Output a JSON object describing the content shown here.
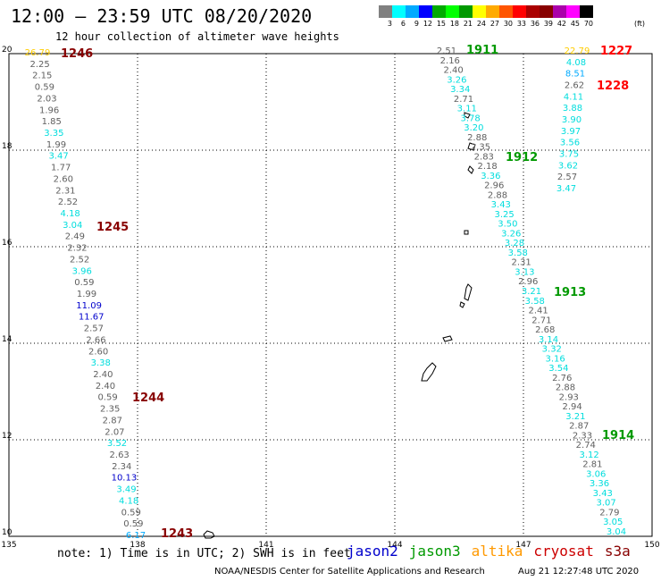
{
  "header": {
    "title": "12:00 – 23:59 UTC 08/20/2020",
    "subtitle": "12 hour collection of altimeter wave heights"
  },
  "legend": {
    "colors": [
      "#808080",
      "#00ffff",
      "#00aaff",
      "#0000ff",
      "#00aa00",
      "#00ff00",
      "#009900",
      "#ffff00",
      "#ffaa00",
      "#ff5500",
      "#ff0000",
      "#aa0000",
      "#880000",
      "#aa00aa",
      "#ff00ff",
      "#000000"
    ],
    "labels": [
      "3",
      "6",
      "9",
      "12",
      "15",
      "18",
      "21",
      "24",
      "27",
      "30",
      "33",
      "36",
      "39",
      "42",
      "45",
      "70"
    ],
    "unit": "(ft)"
  },
  "axes": {
    "x_ticks": [
      "135",
      "138",
      "141",
      "144",
      "147",
      "150"
    ],
    "y_ticks": [
      "20",
      "18",
      "16",
      "14",
      "12",
      "10"
    ]
  },
  "orbits": [
    {
      "label": "1246",
      "color": "#880000"
    },
    {
      "label": "1245",
      "color": "#880000"
    },
    {
      "label": "1244",
      "color": "#880000"
    },
    {
      "label": "1243",
      "color": "#880000"
    },
    {
      "label": "1911",
      "color": "#009900"
    },
    {
      "label": "1912",
      "color": "#009900"
    },
    {
      "label": "1913",
      "color": "#009900"
    },
    {
      "label": "1914",
      "color": "#009900"
    },
    {
      "label": "1227",
      "color": "#ff0000"
    },
    {
      "label": "1228",
      "color": "#ff0000"
    }
  ],
  "tracks": [
    {
      "name": "track-1243-1246",
      "values": [
        "26.79",
        "2.25",
        "2.15",
        "0.59",
        "2.03",
        "1.96",
        "1.85",
        "3.35",
        "1.99",
        "3.47",
        "1.77",
        "2.60",
        "2.31",
        "2.52",
        "4.18",
        "3.04",
        "2.49",
        "2.32",
        "2.52",
        "3.96",
        "0.59",
        "1.99",
        "11.09",
        "11.67",
        "2.57",
        "2.66",
        "2.60",
        "3.38",
        "2.40",
        "2.40",
        "0.59",
        "2.35",
        "2.87",
        "2.07",
        "3.52",
        "2.63",
        "2.34",
        "10.13",
        "3.49",
        "4.18",
        "0.59",
        "0.59",
        "6.17"
      ],
      "colors": [
        "#ffcc00",
        "#606060",
        "#606060",
        "#606060",
        "#606060",
        "#606060",
        "#606060",
        "#00dddd",
        "#606060",
        "#00dddd",
        "#606060",
        "#606060",
        "#606060",
        "#606060",
        "#00dddd",
        "#00dddd",
        "#606060",
        "#606060",
        "#606060",
        "#00dddd",
        "#606060",
        "#606060",
        "#0000cc",
        "#0000cc",
        "#606060",
        "#606060",
        "#606060",
        "#00dddd",
        "#606060",
        "#606060",
        "#606060",
        "#606060",
        "#606060",
        "#606060",
        "#00dddd",
        "#606060",
        "#606060",
        "#0000cc",
        "#00dddd",
        "#00dddd",
        "#606060",
        "#606060",
        "#00aaff"
      ]
    },
    {
      "name": "track-1911-1914",
      "values": [
        "2.51",
        "2.16",
        "2.40",
        "3.26",
        "3.34",
        "2.71",
        "3.11",
        "3.78",
        "3.20",
        "2.88",
        "2.35",
        "2.83",
        "2.18",
        "3.36",
        "2.96",
        "2.88",
        "3.43",
        "3.25",
        "3.50",
        "3.26",
        "3.28",
        "3.58",
        "2.31",
        "3.13",
        "2.96",
        "3.21",
        "3.58",
        "2.41",
        "2.71",
        "2.68",
        "3.14",
        "3.32",
        "3.16",
        "3.54",
        "2.76",
        "2.88",
        "2.93",
        "2.94",
        "3.21",
        "2.87",
        "2.33",
        "2.74",
        "3.12",
        "2.81",
        "3.06",
        "3.36",
        "3.43",
        "3.07",
        "2.79",
        "3.05",
        "3.04"
      ],
      "colors": [
        "#606060",
        "#606060",
        "#606060",
        "#00dddd",
        "#00dddd",
        "#606060",
        "#00dddd",
        "#00dddd",
        "#00dddd",
        "#606060",
        "#606060",
        "#606060",
        "#606060",
        "#00dddd",
        "#606060",
        "#606060",
        "#00dddd",
        "#00dddd",
        "#00dddd",
        "#00dddd",
        "#00dddd",
        "#00dddd",
        "#606060",
        "#00dddd",
        "#606060",
        "#00dddd",
        "#00dddd",
        "#606060",
        "#606060",
        "#606060",
        "#00dddd",
        "#00dddd",
        "#00dddd",
        "#00dddd",
        "#606060",
        "#606060",
        "#606060",
        "#606060",
        "#00dddd",
        "#606060",
        "#606060",
        "#606060",
        "#00dddd",
        "#606060",
        "#00dddd",
        "#00dddd",
        "#00dddd",
        "#00dddd",
        "#606060",
        "#00dddd",
        "#00dddd"
      ]
    },
    {
      "name": "track-1227-1228",
      "values": [
        "22.79",
        "4.08",
        "8.51",
        "2.62",
        "4.11",
        "3.88",
        "3.90",
        "3.97",
        "3.56",
        "3.75",
        "3.62",
        "2.57",
        "3.47"
      ],
      "colors": [
        "#ffcc00",
        "#00dddd",
        "#00aaff",
        "#606060",
        "#00dddd",
        "#00dddd",
        "#00dddd",
        "#00dddd",
        "#00dddd",
        "#00dddd",
        "#00dddd",
        "#606060",
        "#00dddd"
      ]
    }
  ],
  "footer": {
    "note": "note: 1) Time is in UTC; 2) SWH is in feet",
    "satellites": [
      {
        "name": "jason2",
        "color": "#0000cc"
      },
      {
        "name": "jason3",
        "color": "#009900"
      },
      {
        "name": "altika",
        "color": "#ff9900"
      },
      {
        "name": "cryosat",
        "color": "#cc0000"
      },
      {
        "name": "s3a",
        "color": "#880000"
      }
    ],
    "credit": "NOAA/NESDIS Center for Satellite Applications and Research",
    "timestamp": "Aug 21 12:27:48 UTC 2020"
  }
}
